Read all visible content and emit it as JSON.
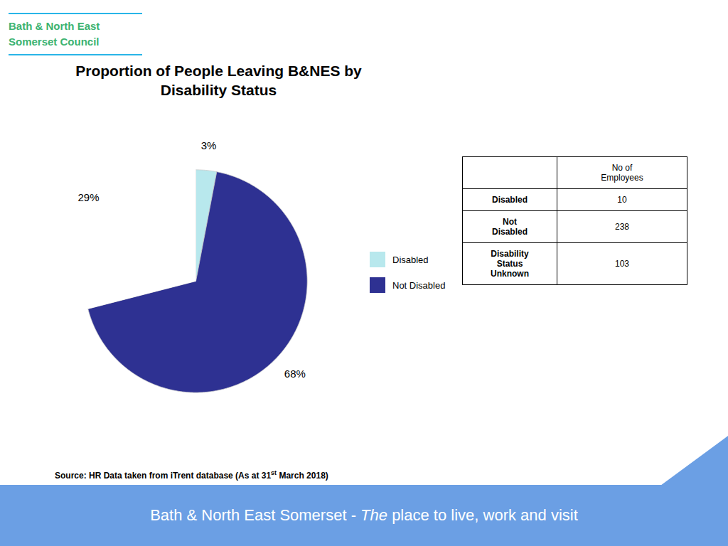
{
  "chart_data": {
    "type": "pie",
    "title": "Proportion of People Leaving B&NES by\nDisability Status",
    "categories": [
      "Disabled",
      "Not Disabled",
      null
    ],
    "values": [
      3,
      68,
      29
    ],
    "value_labels": [
      "3%",
      "68%",
      "29%"
    ],
    "colors": [
      "#b8e8ed",
      "#2e3192",
      "#ffffff"
    ],
    "data_labels": true,
    "legend": "right",
    "table": {
      "header": "No of\nEmployees",
      "rows": [
        [
          "Disabled",
          10
        ],
        [
          "Not\nDisabled",
          238
        ],
        [
          "Disability\nStatus\nUnknown",
          103
        ]
      ]
    },
    "source": [
      "Source: HR Data taken from iTrent database (As at 31",
      "st",
      " March 2018)"
    ],
    "logo": {
      "lines": [
        "Bath & North East",
        "Somerset Council"
      ],
      "color": "#3cb371",
      "rule_color": "#29b5e8"
    },
    "footer": {
      "text": [
        "Bath & North East Somerset - ",
        "The",
        " place to live, work and visit"
      ],
      "color": "#6b9fe4"
    }
  }
}
